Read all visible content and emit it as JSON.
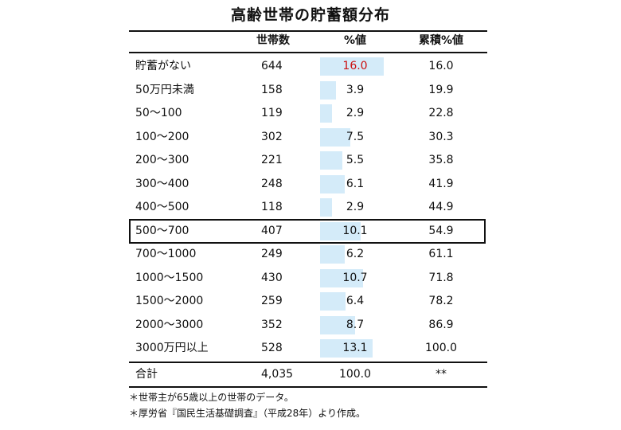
{
  "title": "高齢世帯の貯蓄額分布",
  "headers": {
    "households": "世帯数",
    "pct": "%値",
    "cum": "累積%値"
  },
  "chart_data": {
    "type": "table",
    "title": "高齢世帯の貯蓄額分布",
    "columns": [
      "世帯数",
      "%値",
      "累積%値"
    ],
    "rows": [
      {
        "label": "貯蓄がない",
        "households": "644",
        "pct": "16.0",
        "cum": "16.0",
        "pct_color": "#cc1111"
      },
      {
        "label": "50万円未満",
        "households": "158",
        "pct": "3.9",
        "cum": "19.9"
      },
      {
        "label": "50～100",
        "households": "119",
        "pct": "2.9",
        "cum": "22.8"
      },
      {
        "label": "100～200",
        "households": "302",
        "pct": "7.5",
        "cum": "30.3"
      },
      {
        "label": "200～300",
        "households": "221",
        "pct": "5.5",
        "cum": "35.8"
      },
      {
        "label": "300～400",
        "households": "248",
        "pct": "6.1",
        "cum": "41.9"
      },
      {
        "label": "400～500",
        "households": "118",
        "pct": "2.9",
        "cum": "44.9"
      },
      {
        "label": "500～700",
        "households": "407",
        "pct": "10.1",
        "cum": "54.9",
        "highlight": true
      },
      {
        "label": "700～1000",
        "households": "249",
        "pct": "6.2",
        "cum": "61.1"
      },
      {
        "label": "1000～1500",
        "households": "430",
        "pct": "10.7",
        "cum": "71.8"
      },
      {
        "label": "1500～2000",
        "households": "259",
        "pct": "6.4",
        "cum": "78.2"
      },
      {
        "label": "2000～3000",
        "households": "352",
        "pct": "8.7",
        "cum": "86.9"
      },
      {
        "label": "3000万円以上",
        "households": "528",
        "pct": "13.1",
        "cum": "100.0"
      }
    ],
    "total": {
      "label": "合計",
      "households": "4,035",
      "pct": "100.0",
      "cum": "**"
    },
    "bar_color": "#d4ebf9"
  },
  "notes": [
    "＊世帯主が65歳以上の世帯のデータ。",
    "＊厚労省『国民生活基礎調査』（平成28年）より作成。"
  ]
}
